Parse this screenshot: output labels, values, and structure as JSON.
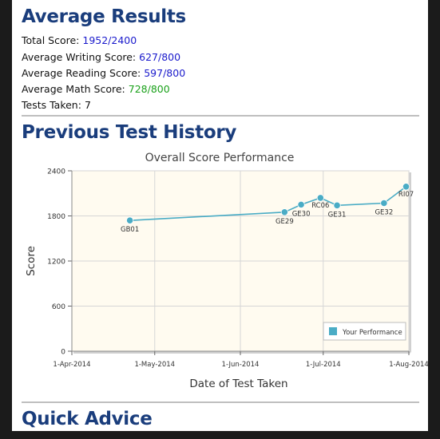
{
  "averages": {
    "heading": "Average Results",
    "total_label": "Total Score:",
    "total_value": "1952/2400",
    "writing_label": "Average Writing Score:",
    "writing_value": "627/800",
    "reading_label": "Average Reading Score:",
    "reading_value": "597/800",
    "math_label": "Average Math Score:",
    "math_value": "728/800",
    "tests_label": "Tests Taken:",
    "tests_value": "7"
  },
  "history": {
    "heading": "Previous Test History"
  },
  "advice": {
    "heading": "Quick Advice"
  },
  "colors": {
    "heading": "#1a3d7c",
    "blue_value": "#1a1acc",
    "green_value": "#1aa11a",
    "series": "#4aacc5",
    "plot_bg": "#fffbf0"
  },
  "chart_data": {
    "type": "line",
    "title": "Overall Score Performance",
    "xlabel": "Date of Test Taken",
    "ylabel": "Score",
    "ylim": [
      0,
      2400
    ],
    "yticks": [
      "0",
      "600",
      "1200",
      "1800",
      "2400"
    ],
    "xlim": [
      "2014-04-01",
      "2014-08-01"
    ],
    "xticks": [
      {
        "date": "2014-04-01",
        "label": "1-Apr-2014"
      },
      {
        "date": "2014-05-01",
        "label": "1-May-2014"
      },
      {
        "date": "2014-06-01",
        "label": "1-Jun-2014"
      },
      {
        "date": "2014-07-01",
        "label": "1-Jul-2014"
      },
      {
        "date": "2014-08-01",
        "label": "1-Aug-2014"
      }
    ],
    "grid": true,
    "legend_position": "bottom-right",
    "series": [
      {
        "name": "Your Performance",
        "points": [
          {
            "x": "2014-04-22",
            "y": 1740,
            "label": "GB01"
          },
          {
            "x": "2014-06-17",
            "y": 1850,
            "label": "GE29"
          },
          {
            "x": "2014-06-23",
            "y": 1950,
            "label": "GE30"
          },
          {
            "x": "2014-06-30",
            "y": 2040,
            "label": "RC06"
          },
          {
            "x": "2014-07-06",
            "y": 1940,
            "label": "GE31"
          },
          {
            "x": "2014-07-23",
            "y": 1970,
            "label": "GE32"
          },
          {
            "x": "2014-07-31",
            "y": 2190,
            "label": "RI07"
          }
        ]
      }
    ]
  }
}
